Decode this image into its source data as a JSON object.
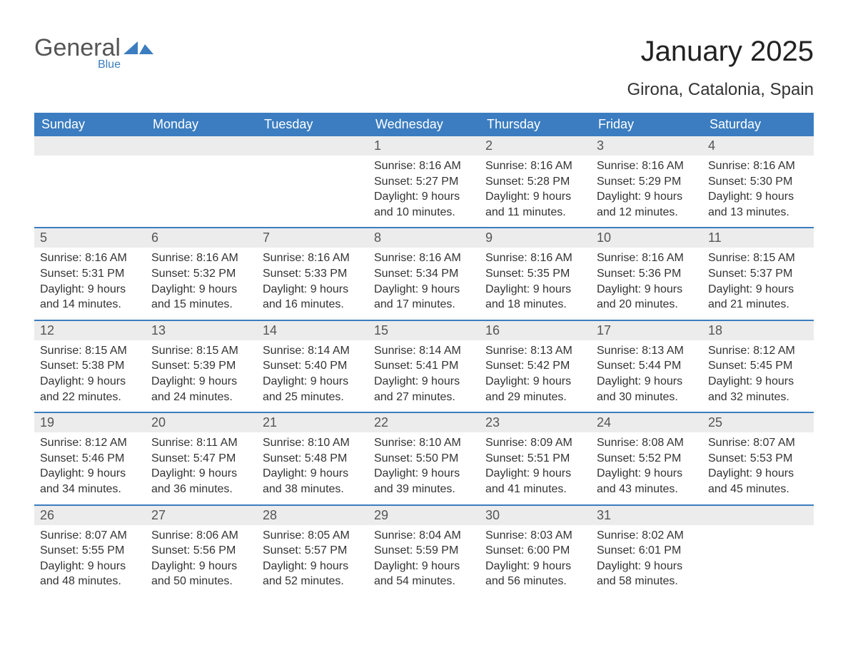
{
  "logo": {
    "word1": "General",
    "word2": "Blue",
    "brand_color": "#3b7dc0",
    "text_color": "#555555"
  },
  "header": {
    "title": "January 2025",
    "subtitle": "Girona, Catalonia, Spain"
  },
  "colors": {
    "header_bg": "#3b7dc0",
    "header_text": "#ffffff",
    "daynum_bg": "#ececec",
    "daynum_text": "#555555",
    "body_text": "#333333",
    "week_border": "#3b7dc0",
    "page_bg": "#ffffff"
  },
  "days_of_week": [
    "Sunday",
    "Monday",
    "Tuesday",
    "Wednesday",
    "Thursday",
    "Friday",
    "Saturday"
  ],
  "weeks": [
    [
      {
        "day": "",
        "sunrise": "",
        "sunset": "",
        "daylight1": "",
        "daylight2": ""
      },
      {
        "day": "",
        "sunrise": "",
        "sunset": "",
        "daylight1": "",
        "daylight2": ""
      },
      {
        "day": "",
        "sunrise": "",
        "sunset": "",
        "daylight1": "",
        "daylight2": ""
      },
      {
        "day": "1",
        "sunrise": "Sunrise: 8:16 AM",
        "sunset": "Sunset: 5:27 PM",
        "daylight1": "Daylight: 9 hours",
        "daylight2": "and 10 minutes."
      },
      {
        "day": "2",
        "sunrise": "Sunrise: 8:16 AM",
        "sunset": "Sunset: 5:28 PM",
        "daylight1": "Daylight: 9 hours",
        "daylight2": "and 11 minutes."
      },
      {
        "day": "3",
        "sunrise": "Sunrise: 8:16 AM",
        "sunset": "Sunset: 5:29 PM",
        "daylight1": "Daylight: 9 hours",
        "daylight2": "and 12 minutes."
      },
      {
        "day": "4",
        "sunrise": "Sunrise: 8:16 AM",
        "sunset": "Sunset: 5:30 PM",
        "daylight1": "Daylight: 9 hours",
        "daylight2": "and 13 minutes."
      }
    ],
    [
      {
        "day": "5",
        "sunrise": "Sunrise: 8:16 AM",
        "sunset": "Sunset: 5:31 PM",
        "daylight1": "Daylight: 9 hours",
        "daylight2": "and 14 minutes."
      },
      {
        "day": "6",
        "sunrise": "Sunrise: 8:16 AM",
        "sunset": "Sunset: 5:32 PM",
        "daylight1": "Daylight: 9 hours",
        "daylight2": "and 15 minutes."
      },
      {
        "day": "7",
        "sunrise": "Sunrise: 8:16 AM",
        "sunset": "Sunset: 5:33 PM",
        "daylight1": "Daylight: 9 hours",
        "daylight2": "and 16 minutes."
      },
      {
        "day": "8",
        "sunrise": "Sunrise: 8:16 AM",
        "sunset": "Sunset: 5:34 PM",
        "daylight1": "Daylight: 9 hours",
        "daylight2": "and 17 minutes."
      },
      {
        "day": "9",
        "sunrise": "Sunrise: 8:16 AM",
        "sunset": "Sunset: 5:35 PM",
        "daylight1": "Daylight: 9 hours",
        "daylight2": "and 18 minutes."
      },
      {
        "day": "10",
        "sunrise": "Sunrise: 8:16 AM",
        "sunset": "Sunset: 5:36 PM",
        "daylight1": "Daylight: 9 hours",
        "daylight2": "and 20 minutes."
      },
      {
        "day": "11",
        "sunrise": "Sunrise: 8:15 AM",
        "sunset": "Sunset: 5:37 PM",
        "daylight1": "Daylight: 9 hours",
        "daylight2": "and 21 minutes."
      }
    ],
    [
      {
        "day": "12",
        "sunrise": "Sunrise: 8:15 AM",
        "sunset": "Sunset: 5:38 PM",
        "daylight1": "Daylight: 9 hours",
        "daylight2": "and 22 minutes."
      },
      {
        "day": "13",
        "sunrise": "Sunrise: 8:15 AM",
        "sunset": "Sunset: 5:39 PM",
        "daylight1": "Daylight: 9 hours",
        "daylight2": "and 24 minutes."
      },
      {
        "day": "14",
        "sunrise": "Sunrise: 8:14 AM",
        "sunset": "Sunset: 5:40 PM",
        "daylight1": "Daylight: 9 hours",
        "daylight2": "and 25 minutes."
      },
      {
        "day": "15",
        "sunrise": "Sunrise: 8:14 AM",
        "sunset": "Sunset: 5:41 PM",
        "daylight1": "Daylight: 9 hours",
        "daylight2": "and 27 minutes."
      },
      {
        "day": "16",
        "sunrise": "Sunrise: 8:13 AM",
        "sunset": "Sunset: 5:42 PM",
        "daylight1": "Daylight: 9 hours",
        "daylight2": "and 29 minutes."
      },
      {
        "day": "17",
        "sunrise": "Sunrise: 8:13 AM",
        "sunset": "Sunset: 5:44 PM",
        "daylight1": "Daylight: 9 hours",
        "daylight2": "and 30 minutes."
      },
      {
        "day": "18",
        "sunrise": "Sunrise: 8:12 AM",
        "sunset": "Sunset: 5:45 PM",
        "daylight1": "Daylight: 9 hours",
        "daylight2": "and 32 minutes."
      }
    ],
    [
      {
        "day": "19",
        "sunrise": "Sunrise: 8:12 AM",
        "sunset": "Sunset: 5:46 PM",
        "daylight1": "Daylight: 9 hours",
        "daylight2": "and 34 minutes."
      },
      {
        "day": "20",
        "sunrise": "Sunrise: 8:11 AM",
        "sunset": "Sunset: 5:47 PM",
        "daylight1": "Daylight: 9 hours",
        "daylight2": "and 36 minutes."
      },
      {
        "day": "21",
        "sunrise": "Sunrise: 8:10 AM",
        "sunset": "Sunset: 5:48 PM",
        "daylight1": "Daylight: 9 hours",
        "daylight2": "and 38 minutes."
      },
      {
        "day": "22",
        "sunrise": "Sunrise: 8:10 AM",
        "sunset": "Sunset: 5:50 PM",
        "daylight1": "Daylight: 9 hours",
        "daylight2": "and 39 minutes."
      },
      {
        "day": "23",
        "sunrise": "Sunrise: 8:09 AM",
        "sunset": "Sunset: 5:51 PM",
        "daylight1": "Daylight: 9 hours",
        "daylight2": "and 41 minutes."
      },
      {
        "day": "24",
        "sunrise": "Sunrise: 8:08 AM",
        "sunset": "Sunset: 5:52 PM",
        "daylight1": "Daylight: 9 hours",
        "daylight2": "and 43 minutes."
      },
      {
        "day": "25",
        "sunrise": "Sunrise: 8:07 AM",
        "sunset": "Sunset: 5:53 PM",
        "daylight1": "Daylight: 9 hours",
        "daylight2": "and 45 minutes."
      }
    ],
    [
      {
        "day": "26",
        "sunrise": "Sunrise: 8:07 AM",
        "sunset": "Sunset: 5:55 PM",
        "daylight1": "Daylight: 9 hours",
        "daylight2": "and 48 minutes."
      },
      {
        "day": "27",
        "sunrise": "Sunrise: 8:06 AM",
        "sunset": "Sunset: 5:56 PM",
        "daylight1": "Daylight: 9 hours",
        "daylight2": "and 50 minutes."
      },
      {
        "day": "28",
        "sunrise": "Sunrise: 8:05 AM",
        "sunset": "Sunset: 5:57 PM",
        "daylight1": "Daylight: 9 hours",
        "daylight2": "and 52 minutes."
      },
      {
        "day": "29",
        "sunrise": "Sunrise: 8:04 AM",
        "sunset": "Sunset: 5:59 PM",
        "daylight1": "Daylight: 9 hours",
        "daylight2": "and 54 minutes."
      },
      {
        "day": "30",
        "sunrise": "Sunrise: 8:03 AM",
        "sunset": "Sunset: 6:00 PM",
        "daylight1": "Daylight: 9 hours",
        "daylight2": "and 56 minutes."
      },
      {
        "day": "31",
        "sunrise": "Sunrise: 8:02 AM",
        "sunset": "Sunset: 6:01 PM",
        "daylight1": "Daylight: 9 hours",
        "daylight2": "and 58 minutes."
      },
      {
        "day": "",
        "sunrise": "",
        "sunset": "",
        "daylight1": "",
        "daylight2": ""
      }
    ]
  ]
}
